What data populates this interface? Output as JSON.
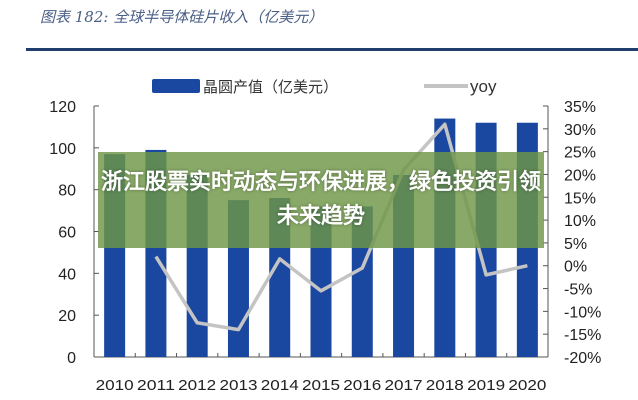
{
  "figure_title": "图表 182: 全球半导体硅片收入（亿美元）",
  "banner": {
    "headline": "浙江股票实时动态与环保进展，绿色投资引领未来趋势"
  },
  "chart_data": {
    "type": "bar",
    "title": "",
    "categories": [
      "2010",
      "2011",
      "2012",
      "2013",
      "2014",
      "2015",
      "2016",
      "2017",
      "2018",
      "2019",
      "2020"
    ],
    "series": [
      {
        "name": "晶圆产值（亿美元）",
        "type": "bar",
        "axis": "left",
        "color": "#1a47a0",
        "values": [
          97,
          99,
          87,
          75,
          76,
          72,
          72,
          87,
          114,
          112,
          112
        ]
      },
      {
        "name": "yoy",
        "type": "line",
        "axis": "right",
        "color": "#c4c4c4",
        "values": [
          null,
          2,
          -12.5,
          -14,
          1.5,
          -5.5,
          -0.5,
          21,
          31,
          -2,
          0
        ]
      }
    ],
    "left_axis": {
      "ylim": [
        0,
        120
      ],
      "ticks": [
        "0",
        "20",
        "40",
        "60",
        "80",
        "100",
        "120"
      ]
    },
    "right_axis": {
      "ylim": [
        -20,
        35
      ],
      "ticks": [
        "-20%",
        "-15%",
        "-10%",
        "-5%",
        "0%",
        "5%",
        "10%",
        "15%",
        "20%",
        "25%",
        "30%",
        "35%"
      ]
    },
    "legend_placement": "top",
    "grid": false
  }
}
